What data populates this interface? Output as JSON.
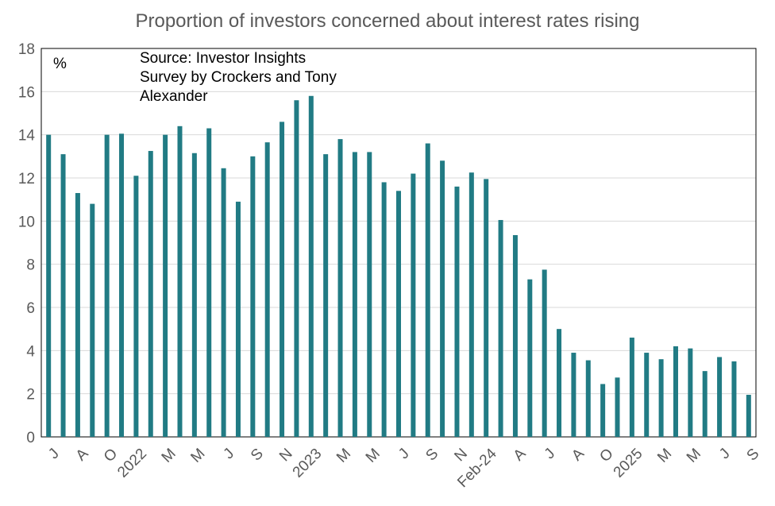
{
  "chart_data": {
    "type": "bar",
    "title": "Proportion of investors concerned about interest rates rising",
    "unit_label": "%",
    "annotation": [
      "Source: Investor Insights",
      "Survey by Crockers and Tony",
      "Alexander"
    ],
    "ylim": [
      0,
      18
    ],
    "yticks": [
      0,
      2,
      4,
      6,
      8,
      10,
      12,
      14,
      16,
      18
    ],
    "grid": true,
    "bar_color": "#217B84",
    "categories": [
      "J",
      "",
      "A",
      "",
      "O",
      "",
      "2022",
      "",
      "M",
      "",
      "M",
      "",
      "J",
      "",
      "S",
      "",
      "N",
      "",
      "2023",
      "",
      "M",
      "",
      "M",
      "",
      "J",
      "",
      "S",
      "",
      "N",
      "",
      "Feb-24",
      "",
      "A",
      "",
      "J",
      "",
      "A",
      "",
      "O",
      "",
      "2025",
      "",
      "M",
      "",
      "M",
      "",
      "J",
      "",
      "S"
    ],
    "values": [
      14.0,
      13.1,
      11.3,
      10.8,
      14.0,
      14.05,
      12.1,
      13.25,
      14.0,
      14.4,
      13.15,
      14.3,
      12.45,
      10.9,
      13.0,
      13.65,
      14.6,
      15.6,
      15.8,
      13.1,
      13.8,
      13.2,
      13.2,
      11.8,
      11.4,
      12.2,
      13.6,
      12.8,
      11.6,
      12.25,
      11.95,
      10.05,
      9.35,
      7.3,
      7.75,
      5.0,
      3.9,
      3.55,
      2.45,
      2.75,
      4.6,
      3.9,
      3.6,
      4.2,
      4.1,
      3.05,
      3.7,
      3.5,
      1.95
    ]
  }
}
